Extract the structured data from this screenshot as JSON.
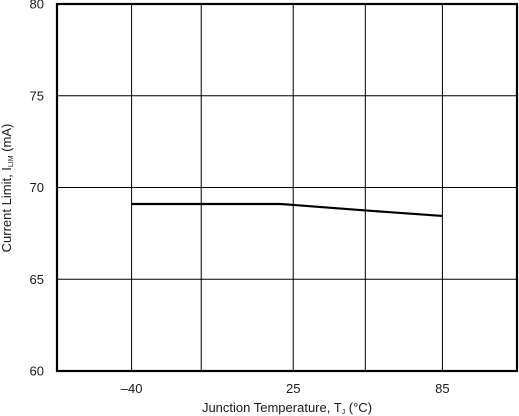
{
  "chart_data": {
    "type": "line",
    "xlabel": {
      "prefix": "Junction Temperature, T",
      "subscript": "J",
      "suffix": " (°C)"
    },
    "ylabel": {
      "prefix": "Current Limit, I",
      "subscript": "LIM",
      "suffix": " (mA)"
    },
    "xlim": [
      -70,
      115
    ],
    "ylim": [
      60,
      80
    ],
    "x_ticks": [
      -40,
      25,
      85
    ],
    "x_tick_labels": [
      "–40",
      "25",
      "85"
    ],
    "x_grid": [
      -40,
      -12,
      25,
      54,
      85
    ],
    "y_ticks": [
      60,
      65,
      70,
      75,
      80
    ],
    "y_tick_labels": [
      "60",
      "65",
      "70",
      "75",
      "80"
    ],
    "grid": true,
    "series": [
      {
        "x": [
          -40,
          20,
          25,
          54,
          85
        ],
        "y": [
          69.1,
          69.1,
          69.05,
          68.75,
          68.45
        ]
      }
    ],
    "colors": {
      "line": "#000000",
      "grid": "#000000",
      "frame": "#000000"
    }
  }
}
